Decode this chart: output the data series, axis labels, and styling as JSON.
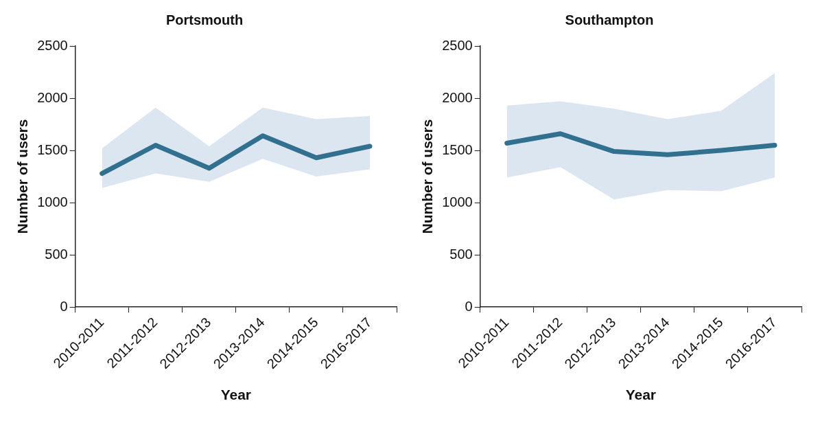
{
  "chart_data": [
    {
      "type": "line",
      "title": "Portsmouth",
      "xlabel": "Year",
      "ylabel": "Number of users",
      "categories": [
        "2010-2011",
        "2011-2012",
        "2012-2013",
        "2013-2014",
        "2014-2015",
        "2016-2017"
      ],
      "series": [
        {
          "color": "#31718f",
          "values": [
            1280,
            1550,
            1330,
            1640,
            1430,
            1540
          ],
          "lower": [
            1140,
            1280,
            1200,
            1420,
            1250,
            1320
          ],
          "upper": [
            1520,
            1910,
            1540,
            1910,
            1800,
            1830
          ]
        }
      ],
      "ylim": [
        0,
        2500
      ],
      "yticks": [
        0,
        500,
        1000,
        1500,
        2000,
        2500
      ],
      "grid": false,
      "legend": false,
      "marker": "none",
      "line_style": "solid"
    },
    {
      "type": "line",
      "title": "Southampton",
      "xlabel": "Year",
      "ylabel": "Number of users",
      "categories": [
        "2010-2011",
        "2011-2012",
        "2012-2013",
        "2013-2014",
        "2014-2015",
        "2016-2017"
      ],
      "series": [
        {
          "color": "#31718f",
          "values": [
            1570,
            1660,
            1490,
            1460,
            1500,
            1550
          ],
          "lower": [
            1240,
            1340,
            1030,
            1120,
            1110,
            1240
          ],
          "upper": [
            1930,
            1970,
            1900,
            1800,
            1880,
            2240
          ]
        }
      ],
      "ylim": [
        0,
        2500
      ],
      "yticks": [
        0,
        500,
        1000,
        1500,
        2000,
        2500
      ],
      "grid": false,
      "legend": false,
      "marker": "none",
      "line_style": "solid"
    }
  ]
}
